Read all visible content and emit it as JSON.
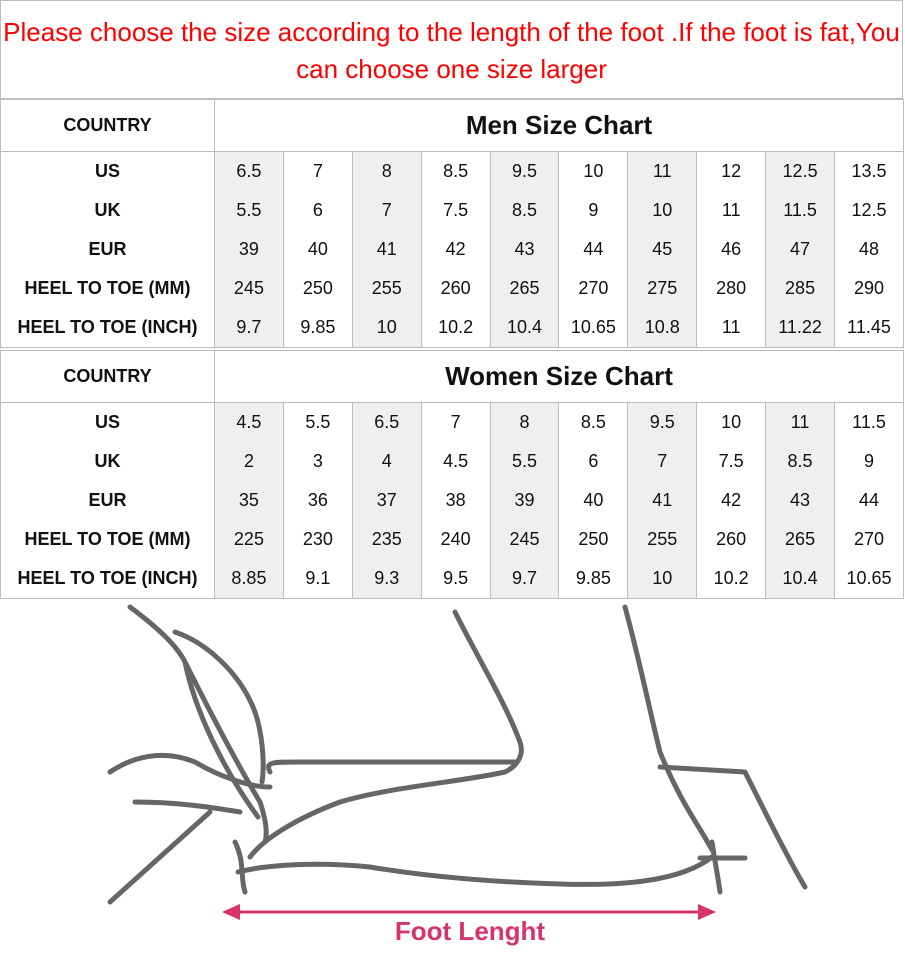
{
  "notice": "Please choose the size according to the length of the foot .If the foot is fat,You can choose one size larger",
  "row_labels": [
    "US",
    "UK",
    "EUR",
    "HEEL TO TOE (MM)",
    "HEEL TO TOE (INCH)"
  ],
  "men": {
    "country_label": "COUNTRY",
    "title": "Men Size Chart",
    "rows": [
      [
        "6.5",
        "7",
        "8",
        "8.5",
        "9.5",
        "10",
        "11",
        "12",
        "12.5",
        "13.5"
      ],
      [
        "5.5",
        "6",
        "7",
        "7.5",
        "8.5",
        "9",
        "10",
        "11",
        "11.5",
        "12.5"
      ],
      [
        "39",
        "40",
        "41",
        "42",
        "43",
        "44",
        "45",
        "46",
        "47",
        "48"
      ],
      [
        "245",
        "250",
        "255",
        "260",
        "265",
        "270",
        "275",
        "280",
        "285",
        "290"
      ],
      [
        "9.7",
        "9.85",
        "10",
        "10.2",
        "10.4",
        "10.65",
        "10.8",
        "11",
        "11.22",
        "11.45"
      ]
    ]
  },
  "women": {
    "country_label": "COUNTRY",
    "title": "Women Size Chart",
    "rows": [
      [
        "4.5",
        "5.5",
        "6.5",
        "7",
        "8",
        "8.5",
        "9.5",
        "10",
        "11",
        "11.5"
      ],
      [
        "2",
        "3",
        "4",
        "4.5",
        "5.5",
        "6",
        "7",
        "7.5",
        "8.5",
        "9"
      ],
      [
        "35",
        "36",
        "37",
        "38",
        "39",
        "40",
        "41",
        "42",
        "43",
        "44"
      ],
      [
        "225",
        "230",
        "235",
        "240",
        "245",
        "250",
        "255",
        "260",
        "265",
        "270"
      ],
      [
        "8.85",
        "9.1",
        "9.3",
        "9.5",
        "9.7",
        "9.85",
        "10",
        "10.2",
        "10.4",
        "10.65"
      ]
    ]
  },
  "illustration": {
    "caption": "Foot Lenght",
    "arrow_color": "#d6336c",
    "line_color": "#666666"
  }
}
